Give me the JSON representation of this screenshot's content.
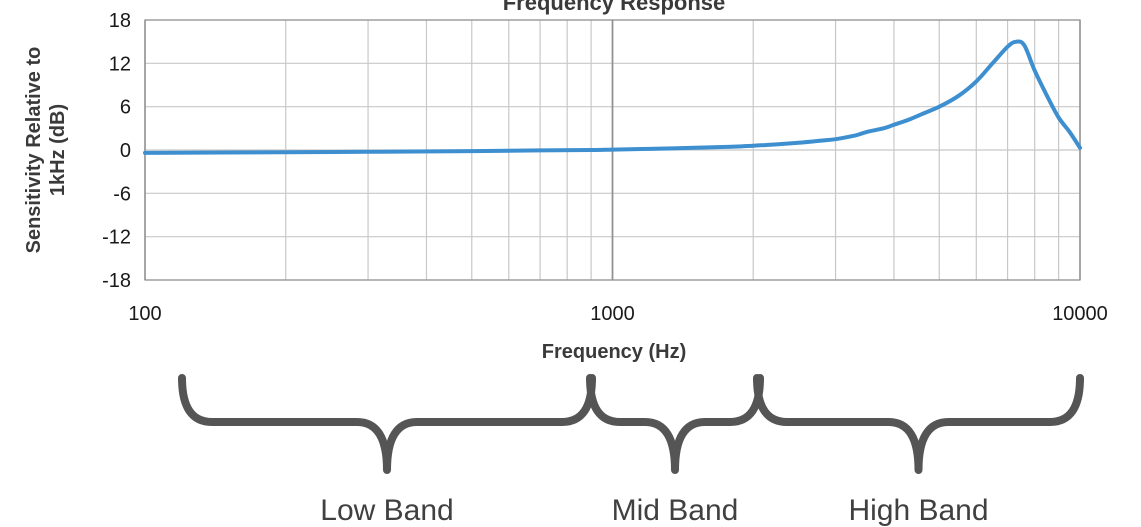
{
  "chart_data": {
    "type": "line",
    "title": "Frequency Response",
    "xlabel": "Frequency (Hz)",
    "ylabel": [
      "Sensitivity Relative to",
      "1kHz (dB)"
    ],
    "xscale": "log",
    "xlim": [
      100,
      10000
    ],
    "ylim": [
      -18,
      18
    ],
    "x_ticks": [
      "100",
      "1000",
      "10000"
    ],
    "y_ticks": [
      "18",
      "12",
      "6",
      "0",
      "-6",
      "-12",
      "-18"
    ],
    "grid": true,
    "line_color": "#3d8fcf",
    "series": [
      {
        "name": "",
        "x": [
          100,
          200,
          300,
          500,
          700,
          900,
          1000,
          1200,
          1500,
          1800,
          2000,
          2200,
          2500,
          2800,
          3000,
          3300,
          3500,
          3800,
          4000,
          4300,
          4600,
          5000,
          5500,
          6000,
          6500,
          7000,
          7300,
          7600,
          8000,
          8500,
          9000,
          9500,
          10000
        ],
        "values": [
          -0.4,
          -0.3,
          -0.25,
          -0.15,
          -0.05,
          0.0,
          0.05,
          0.15,
          0.3,
          0.45,
          0.6,
          0.75,
          1.0,
          1.3,
          1.5,
          2.0,
          2.5,
          3.0,
          3.5,
          4.2,
          5.0,
          6.0,
          7.5,
          9.5,
          12.0,
          14.3,
          15.0,
          14.5,
          11.0,
          7.5,
          4.5,
          2.5,
          0.3
        ]
      }
    ]
  },
  "bands": [
    {
      "label": "Low Band",
      "from": 100,
      "to": 900
    },
    {
      "label": "Mid Band",
      "from": 900,
      "to": 1900
    },
    {
      "label": "High Band",
      "from": 1900,
      "to": 10000
    }
  ],
  "bracket_color": "#555555"
}
